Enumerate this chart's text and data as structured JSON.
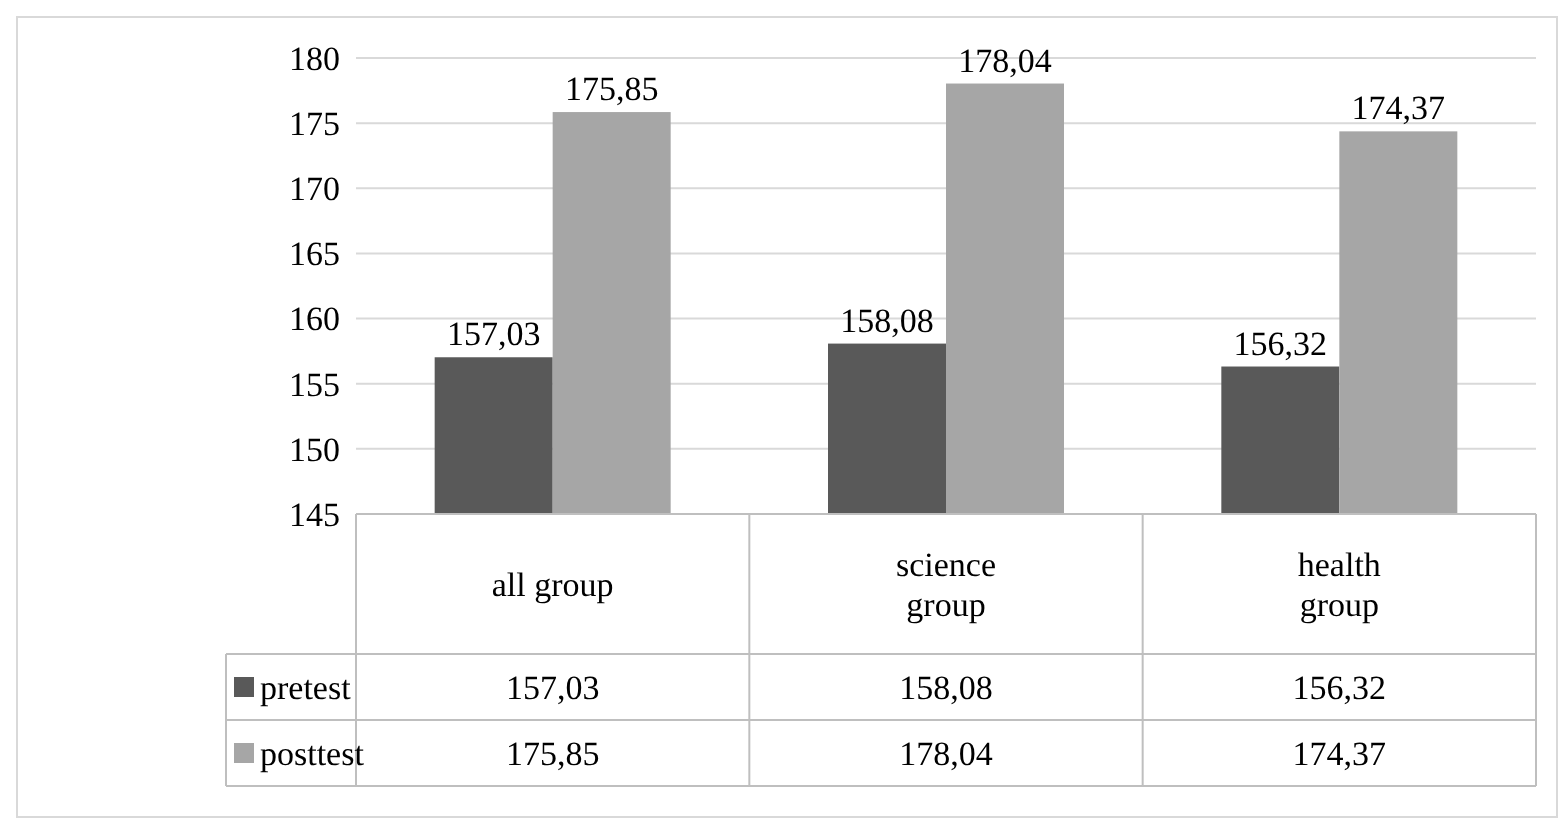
{
  "chart_data": {
    "type": "bar",
    "categories": [
      "all group",
      "science group",
      "health group"
    ],
    "series": [
      {
        "name": "pretest",
        "color": "#595959",
        "values": [
          157.03,
          158.08,
          156.32
        ],
        "value_labels": [
          "157,03",
          "158,08",
          "156,32"
        ]
      },
      {
        "name": "posttest",
        "color": "#a6a6a6",
        "values": [
          175.85,
          178.04,
          174.37
        ],
        "value_labels": [
          "175,85",
          "178,04",
          "174,37"
        ]
      }
    ],
    "ylim": [
      145,
      180
    ],
    "yticks": [
      145,
      150,
      155,
      160,
      165,
      170,
      175,
      180
    ],
    "grid": "y",
    "legend": "bottom"
  }
}
